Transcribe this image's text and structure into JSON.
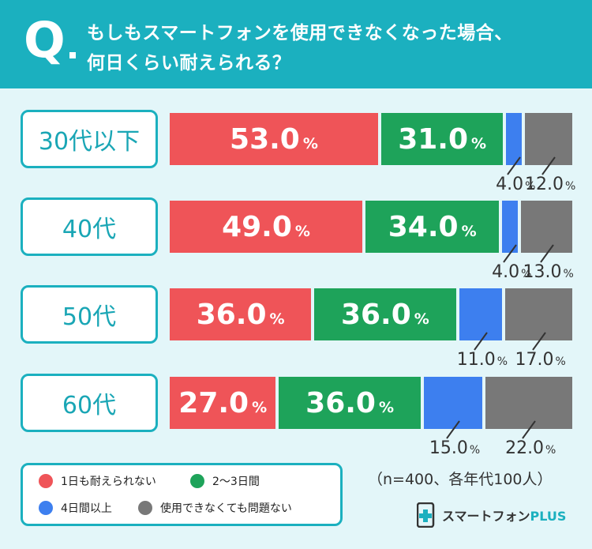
{
  "header": {
    "q_letter": "Q",
    "question_line1": "もしもスマートフォンを使用できなくなった場合、",
    "question_line2": "何日くらい耐えられる？"
  },
  "chart_data": {
    "type": "bar",
    "orientation": "horizontal",
    "stacked": true,
    "title": "もしもスマートフォンを使用できなくなった場合、何日くらい耐えられる？",
    "categories": [
      "30代以下",
      "40代",
      "50代",
      "60代"
    ],
    "unit": "%",
    "xlim": [
      0,
      100
    ],
    "series": [
      {
        "name": "1日も耐えられない",
        "color": "#ef5458",
        "values": [
          53.0,
          49.0,
          36.0,
          27.0
        ]
      },
      {
        "name": "2〜3日間",
        "color": "#1ea35a",
        "values": [
          31.0,
          34.0,
          36.0,
          36.0
        ]
      },
      {
        "name": "4日間以上",
        "color": "#3d7fef",
        "values": [
          4.0,
          4.0,
          11.0,
          15.0
        ]
      },
      {
        "name": "使用できなくても問題ない",
        "color": "#787878",
        "values": [
          12.0,
          13.0,
          17.0,
          22.0
        ]
      }
    ],
    "value_labels": [
      [
        "53.0",
        "31.0",
        "4.0",
        "12.0"
      ],
      [
        "49.0",
        "34.0",
        "4.0",
        "13.0"
      ],
      [
        "36.0",
        "36.0",
        "11.0",
        "17.0"
      ],
      [
        "27.0",
        "36.0",
        "15.0",
        "22.0"
      ]
    ],
    "percent_sign": "%",
    "legend_position": "bottom-left"
  },
  "note": "（n=400、各年代100人）",
  "brand": {
    "name_main": "スマートフォン",
    "name_accent": "PLUS",
    "logo_icon": "plus-logo-icon"
  },
  "colors": {
    "teal": "#1bb0bf",
    "background": "#e3f6f9"
  }
}
